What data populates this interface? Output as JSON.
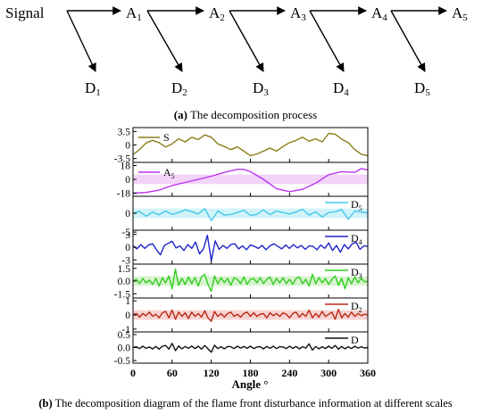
{
  "decomposition": {
    "signal_label": "Signal",
    "approximations": [
      {
        "letter": "A",
        "sub": "1"
      },
      {
        "letter": "A",
        "sub": "2"
      },
      {
        "letter": "A",
        "sub": "3"
      },
      {
        "letter": "A",
        "sub": "4"
      },
      {
        "letter": "A",
        "sub": "5"
      }
    ],
    "details": [
      {
        "letter": "D",
        "sub": "1"
      },
      {
        "letter": "D",
        "sub": "2"
      },
      {
        "letter": "D",
        "sub": "3"
      },
      {
        "letter": "D",
        "sub": "4"
      },
      {
        "letter": "D",
        "sub": "5"
      }
    ]
  },
  "caption_a": {
    "marker": "(a)",
    "text": " The decomposition process"
  },
  "caption_b": {
    "marker": "(b)",
    "text": " The decomposition diagram of the flame front disturbance information at different scales"
  },
  "chart_data": {
    "type": "line",
    "xlabel": "Angle °",
    "xlim": [
      0,
      360
    ],
    "xticks": [
      "0",
      "60",
      "120",
      "180",
      "240",
      "300",
      "360"
    ],
    "panels": [
      {
        "name": "S",
        "sub": "",
        "color": "#8b7d18",
        "band": "",
        "ylim": [
          -4.5,
          4.5
        ],
        "ticks": [
          3.5,
          0,
          -3.5
        ],
        "tick_labels": [
          "3.5",
          "0",
          "-3.5"
        ],
        "legend": "left",
        "x": [
          0,
          10,
          20,
          30,
          40,
          50,
          60,
          70,
          80,
          90,
          100,
          110,
          120,
          130,
          140,
          150,
          160,
          170,
          180,
          190,
          200,
          210,
          220,
          230,
          240,
          250,
          260,
          270,
          280,
          290,
          300,
          310,
          320,
          330,
          340,
          350,
          360
        ],
        "y": [
          -2.5,
          -1.2,
          0.5,
          1.2,
          0.6,
          -0.5,
          0.3,
          1.6,
          0.8,
          2.0,
          1.4,
          2.6,
          2.0,
          0.3,
          -0.4,
          -1.2,
          -0.5,
          -1.6,
          -2.8,
          -2.3,
          -1.6,
          -0.8,
          -1.6,
          -0.4,
          0.6,
          1.2,
          2.0,
          1.0,
          1.6,
          0.8,
          3.0,
          2.8,
          1.5,
          0.6,
          -1.2,
          -2.4,
          -2.8
        ]
      },
      {
        "name": "A",
        "sub": "5",
        "color": "#bb33ee",
        "band": "#f3d4f8",
        "ylim": [
          -22,
          22
        ],
        "ticks": [
          18,
          0,
          -18
        ],
        "tick_labels": [
          "18",
          "0",
          "-18"
        ],
        "legend": "left",
        "x": [
          0,
          20,
          40,
          60,
          80,
          100,
          120,
          140,
          160,
          170,
          180,
          200,
          220,
          240,
          260,
          280,
          300,
          320,
          340,
          350,
          360
        ],
        "y": [
          -18,
          -17,
          -14,
          -8,
          -4,
          0,
          4,
          9,
          13,
          13,
          10,
          0,
          -12,
          -16,
          -13,
          -5,
          6,
          10,
          9,
          14,
          12
        ]
      },
      {
        "name": "D",
        "sub": "5",
        "color": "#44c8e8",
        "band": "#d2f3fa",
        "ylim": [
          -4.5,
          4.5
        ],
        "ticks": [
          0,
          -5
        ],
        "tick_labels": [
          "0",
          "-5"
        ],
        "legend": "right",
        "x": [
          0,
          10,
          20,
          30,
          40,
          50,
          60,
          70,
          80,
          90,
          100,
          110,
          120,
          130,
          140,
          150,
          160,
          170,
          180,
          190,
          200,
          210,
          220,
          230,
          240,
          250,
          260,
          270,
          280,
          290,
          300,
          310,
          320,
          330,
          340,
          350,
          360
        ],
        "y": [
          0,
          0.5,
          -0.8,
          0.3,
          -0.4,
          0.6,
          -0.3,
          0.2,
          0.9,
          0.4,
          -0.2,
          1.2,
          -2.0,
          0.6,
          -0.5,
          -0.3,
          0.2,
          0.8,
          -0.6,
          -0.3,
          0.9,
          -0.4,
          0.6,
          0.2,
          -0.2,
          0.3,
          1.1,
          -0.5,
          0.4,
          -1.0,
          0.2,
          0.4,
          1.0,
          -1.6,
          0.6,
          0.3,
          0.1
        ]
      },
      {
        "name": "D",
        "sub": "4",
        "color": "#1e24c8",
        "band": "",
        "ylim": [
          -4,
          4
        ],
        "ticks": [
          3,
          0,
          -3
        ],
        "tick_labels": [
          "3",
          "0",
          "-3"
        ],
        "legend": "right",
        "x": [
          0,
          6,
          12,
          18,
          24,
          30,
          36,
          42,
          48,
          54,
          60,
          66,
          72,
          78,
          84,
          90,
          96,
          102,
          108,
          114,
          120,
          126,
          132,
          138,
          144,
          150,
          156,
          162,
          168,
          174,
          180,
          186,
          192,
          198,
          204,
          210,
          216,
          222,
          228,
          234,
          240,
          246,
          252,
          258,
          264,
          270,
          276,
          282,
          288,
          294,
          300,
          306,
          312,
          318,
          324,
          330,
          336,
          342,
          348,
          354,
          360
        ],
        "y": [
          0.3,
          -0.4,
          0.6,
          -0.3,
          0.5,
          0.8,
          -0.6,
          -1.8,
          0.4,
          0.9,
          1.4,
          -0.2,
          0.3,
          -0.8,
          0.6,
          -0.3,
          1.2,
          -1.6,
          -0.4,
          2.8,
          -3.2,
          1.5,
          -0.5,
          0.4,
          -0.3,
          0.6,
          0.8,
          -0.4,
          0.3,
          -0.6,
          0.5,
          0.2,
          -0.3,
          0.4,
          -0.6,
          0.3,
          0.8,
          0.2,
          -0.4,
          0.5,
          -0.3,
          0.6,
          -0.2,
          0.4,
          -0.5,
          0.3,
          0.2,
          -0.6,
          0.5,
          -0.3,
          1.0,
          -0.8,
          0.4,
          -1.2,
          0.6,
          -0.4,
          0.8,
          1.2,
          -0.5,
          0.3,
          0.2
        ]
      },
      {
        "name": "D",
        "sub": "3",
        "color": "#33cc22",
        "band": "#d7f3cf",
        "ylim": [
          -2,
          2
        ],
        "ticks": [
          1.5,
          0,
          -1.5
        ],
        "tick_labels": [
          "1.5",
          "0.0",
          "-1.5"
        ],
        "legend": "right",
        "x": [
          0,
          5,
          10,
          15,
          20,
          25,
          30,
          35,
          40,
          45,
          50,
          55,
          60,
          65,
          70,
          75,
          80,
          85,
          90,
          95,
          100,
          105,
          110,
          115,
          120,
          125,
          130,
          135,
          140,
          145,
          150,
          155,
          160,
          165,
          170,
          175,
          180,
          185,
          190,
          195,
          200,
          205,
          210,
          215,
          220,
          225,
          230,
          235,
          240,
          245,
          250,
          255,
          260,
          265,
          270,
          275,
          280,
          285,
          290,
          295,
          300,
          305,
          310,
          315,
          320,
          325,
          330,
          335,
          340,
          345,
          350,
          355,
          360
        ],
        "y": [
          0,
          0.2,
          -0.3,
          0.3,
          -0.2,
          0.1,
          -0.4,
          0.3,
          -0.6,
          0.4,
          -0.2,
          0.6,
          -0.9,
          1.4,
          -0.5,
          0.3,
          -0.4,
          0.5,
          -0.3,
          0.4,
          -0.6,
          0.5,
          0.8,
          -0.4,
          -1.2,
          0.6,
          -0.3,
          0.4,
          -0.2,
          0.3,
          -0.5,
          0.4,
          0.2,
          -0.3,
          0.5,
          -0.4,
          0.2,
          0.3,
          -0.2,
          0.4,
          -0.3,
          0.2,
          0.5,
          -0.4,
          0.3,
          -0.2,
          0.4,
          -0.3,
          0.2,
          -0.4,
          0.3,
          0.5,
          -0.3,
          0.2,
          -0.6,
          0.8,
          -0.3,
          0.4,
          -0.2,
          0.3,
          -0.4,
          0.2,
          0.6,
          -0.5,
          0.3,
          -0.9,
          0.4,
          -0.3,
          0.5,
          -0.2,
          0.3,
          -0.1,
          0
        ]
      },
      {
        "name": "D",
        "sub": "2",
        "color": "#b82a14",
        "band": "#f8d3d3",
        "ylim": [
          -1.2,
          1.2
        ],
        "ticks": [
          1,
          0,
          -1
        ],
        "tick_labels": [
          "1",
          "0",
          "-1"
        ],
        "legend": "right",
        "x": [
          0,
          5,
          10,
          15,
          20,
          25,
          30,
          35,
          40,
          45,
          50,
          55,
          60,
          65,
          70,
          75,
          80,
          85,
          90,
          95,
          100,
          105,
          110,
          115,
          120,
          125,
          130,
          135,
          140,
          145,
          150,
          155,
          160,
          165,
          170,
          175,
          180,
          185,
          190,
          195,
          200,
          205,
          210,
          215,
          220,
          225,
          230,
          235,
          240,
          245,
          250,
          255,
          260,
          265,
          270,
          275,
          280,
          285,
          290,
          295,
          300,
          305,
          310,
          315,
          320,
          325,
          330,
          335,
          340,
          345,
          350,
          355,
          360
        ],
        "y": [
          0,
          0.1,
          -0.15,
          0.1,
          -0.05,
          0.2,
          -0.1,
          0.05,
          -0.2,
          0.15,
          0.25,
          -0.2,
          0.35,
          -0.3,
          0.2,
          -0.1,
          0.15,
          -0.25,
          0.2,
          -0.1,
          0.1,
          -0.15,
          0.3,
          -0.2,
          -0.45,
          0.25,
          -0.1,
          0.1,
          -0.15,
          0.1,
          0.2,
          -0.1,
          0.05,
          -0.15,
          0.1,
          0.2,
          -0.1,
          0.15,
          -0.1,
          0.05,
          0.1,
          -0.2,
          0.15,
          -0.05,
          0.1,
          -0.1,
          0.15,
          0.05,
          -0.2,
          0.1,
          0.2,
          -0.15,
          0.1,
          -0.1,
          0.35,
          -0.2,
          0.1,
          -0.15,
          0.25,
          -0.1,
          0.05,
          0.2,
          -0.3,
          0.4,
          -0.2,
          0.1,
          -0.15,
          0.2,
          -0.1,
          0.1,
          -0.05,
          0.05,
          0
        ]
      },
      {
        "name": "D",
        "sub": "",
        "color": "#111111",
        "band": "",
        "ylim": [
          -0.6,
          0.6
        ],
        "ticks": [
          0.5,
          0,
          -0.5
        ],
        "tick_labels": [
          "0.5",
          "0.0",
          "-0.5"
        ],
        "legend": "right",
        "x": [
          0,
          5,
          10,
          15,
          20,
          25,
          30,
          35,
          40,
          45,
          50,
          55,
          60,
          65,
          70,
          75,
          80,
          85,
          90,
          95,
          100,
          105,
          110,
          115,
          120,
          125,
          130,
          135,
          140,
          145,
          150,
          155,
          160,
          165,
          170,
          175,
          180,
          185,
          190,
          195,
          200,
          205,
          210,
          215,
          220,
          225,
          230,
          235,
          240,
          245,
          250,
          255,
          260,
          265,
          270,
          275,
          280,
          285,
          290,
          295,
          300,
          305,
          310,
          315,
          320,
          325,
          330,
          335,
          340,
          345,
          350,
          355,
          360
        ],
        "y": [
          0,
          0.03,
          -0.04,
          0.05,
          -0.03,
          0.02,
          -0.05,
          0.04,
          -0.06,
          0.05,
          0.08,
          -0.06,
          0.16,
          -0.12,
          0.06,
          -0.05,
          0.04,
          -0.03,
          0.06,
          -0.04,
          0.05,
          -0.06,
          0.08,
          -0.05,
          -0.18,
          0.09,
          -0.04,
          0.03,
          -0.05,
          0.04,
          0.03,
          -0.04,
          0.05,
          -0.02,
          0.04,
          -0.03,
          0.05,
          -0.04,
          0.02,
          0.03,
          -0.05,
          0.04,
          -0.03,
          0.05,
          -0.04,
          0.03,
          0.02,
          -0.04,
          0.05,
          -0.03,
          0.04,
          -0.05,
          0.03,
          -0.02,
          0.14,
          -0.1,
          0.04,
          -0.05,
          0.03,
          -0.04,
          0.05,
          -0.03,
          0.08,
          -0.06,
          0.04,
          -0.05,
          0.03,
          -0.04,
          0.05,
          -0.02,
          0.03,
          -0.02,
          0
        ]
      }
    ]
  }
}
